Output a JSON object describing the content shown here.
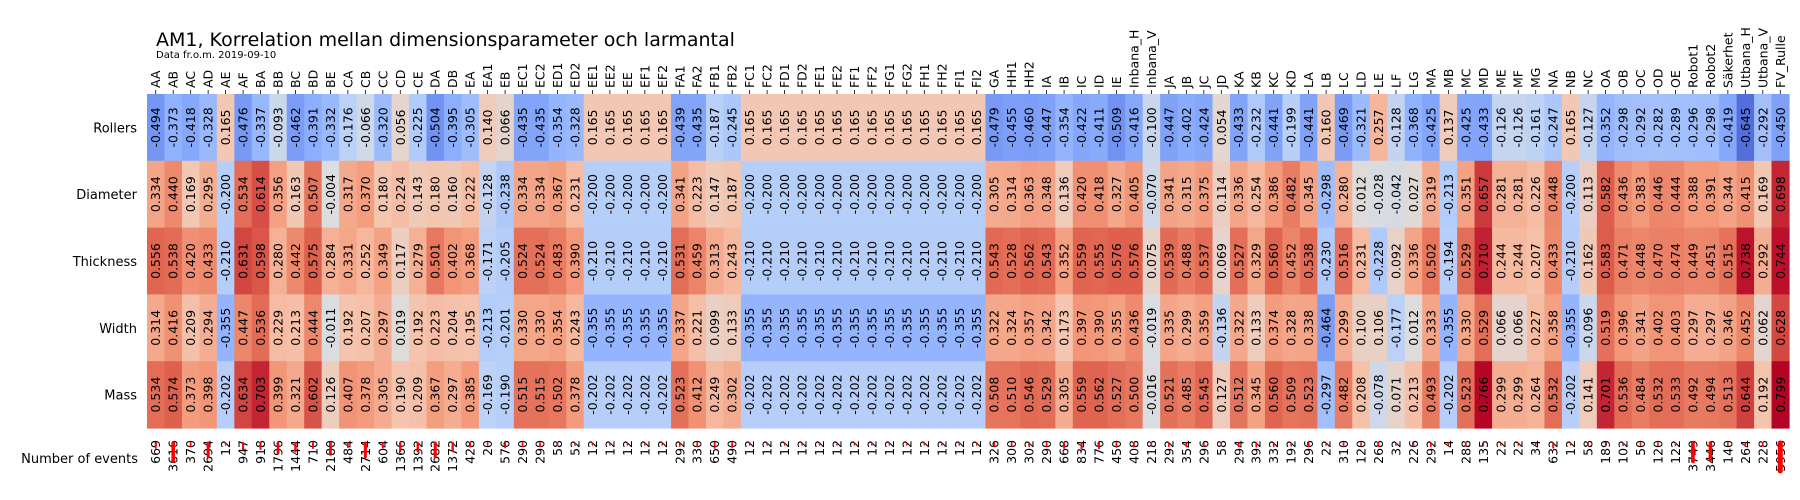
{
  "chart_data": {
    "type": "heatmap",
    "title": "AM1, Korrelation mellan dimensionsparameter och larmantal",
    "subtitle": "Data fr.o.m. 2019-09-10",
    "columns": [
      "AA",
      "AB",
      "AC",
      "AD",
      "AE",
      "AF",
      "BA",
      "BB",
      "BC",
      "BD",
      "BE",
      "CA",
      "CB",
      "CC",
      "CD",
      "CE",
      "DA",
      "DB",
      "EA",
      "EA1",
      "EB",
      "EC1",
      "EC2",
      "ED1",
      "ED2",
      "EE1",
      "EE2",
      "EE",
      "EF1",
      "EF2",
      "FA1",
      "FA2",
      "FB1",
      "FB2",
      "FC1",
      "FC2",
      "FD1",
      "FD2",
      "FE1",
      "FE2",
      "FF1",
      "FF2",
      "FG1",
      "FG2",
      "FH1",
      "FH2",
      "FI1",
      "FI2",
      "GA",
      "HH1",
      "HH2",
      "IA",
      "IB",
      "IC",
      "ID",
      "IE",
      "Inbana_H",
      "Inbana_V",
      "JA",
      "JB",
      "JC",
      "JD",
      "KA",
      "KB",
      "KC",
      "KD",
      "LA",
      "LB",
      "LC",
      "LD",
      "LE",
      "LF",
      "LG",
      "MA",
      "MB",
      "MC",
      "MD",
      "ME",
      "MF",
      "MG",
      "NA",
      "NB",
      "NC",
      "OA",
      "OB",
      "OC",
      "OD",
      "OE",
      "Robot1",
      "Robot2",
      "Säkerhet",
      "Utbana_H",
      "Utbana_V",
      "FV_Rulle"
    ],
    "rows": [
      "Rollers",
      "Diameter",
      "Thickness",
      "Width",
      "Mass"
    ],
    "values": [
      [
        -0.494,
        -0.373,
        -0.418,
        -0.328,
        0.165,
        -0.476,
        -0.337,
        -0.093,
        -0.462,
        -0.391,
        -0.332,
        -0.176,
        -0.066,
        -0.32,
        0.056,
        -0.225,
        -0.504,
        -0.395,
        -0.305,
        0.14,
        0.066,
        -0.435,
        -0.435,
        -0.354,
        -0.328,
        0.165,
        0.165,
        0.165,
        0.165,
        0.165,
        -0.439,
        -0.435,
        -0.187,
        -0.245,
        0.165,
        0.165,
        0.165,
        0.165,
        0.165,
        0.165,
        0.165,
        0.165,
        0.165,
        0.165,
        0.165,
        0.165,
        0.165,
        0.165,
        -0.479,
        -0.455,
        -0.46,
        -0.447,
        -0.354,
        -0.422,
        -0.411,
        -0.509,
        -0.416,
        -0.1,
        -0.447,
        -0.402,
        -0.424,
        0.054,
        -0.433,
        -0.232,
        -0.441,
        -0.199,
        -0.441,
        0.16,
        -0.469,
        -0.321,
        0.257,
        -0.128,
        -0.368,
        -0.425,
        0.137,
        -0.425,
        -0.433,
        -0.126,
        -0.126,
        -0.161,
        -0.247,
        0.165,
        -0.127,
        -0.352,
        -0.298,
        -0.292,
        -0.282,
        -0.289,
        -0.296,
        -0.298,
        -0.419,
        -0.645,
        -0.292,
        -0.45
      ],
      [
        0.334,
        0.44,
        0.169,
        0.295,
        -0.2,
        0.534,
        0.614,
        0.356,
        0.163,
        0.507,
        -0.004,
        0.317,
        0.37,
        0.18,
        0.224,
        0.143,
        0.18,
        0.16,
        0.222,
        -0.128,
        -0.238,
        0.334,
        0.334,
        0.367,
        0.231,
        -0.2,
        -0.2,
        -0.2,
        -0.2,
        -0.2,
        0.341,
        0.223,
        0.147,
        0.187,
        -0.2,
        -0.2,
        -0.2,
        -0.2,
        -0.2,
        -0.2,
        -0.2,
        -0.2,
        -0.2,
        -0.2,
        -0.2,
        -0.2,
        -0.2,
        -0.2,
        0.305,
        0.314,
        0.363,
        0.348,
        0.136,
        0.42,
        0.418,
        0.327,
        0.405,
        -0.07,
        0.341,
        0.315,
        0.375,
        0.114,
        0.336,
        0.254,
        0.386,
        0.482,
        0.345,
        -0.298,
        0.28,
        0.012,
        -0.028,
        -0.042,
        0.027,
        0.319,
        -0.213,
        0.351,
        0.657,
        0.281,
        0.281,
        0.226,
        0.448,
        -0.2,
        0.113,
        0.582,
        0.436,
        0.383,
        0.446,
        0.444,
        0.388,
        0.391,
        0.344,
        0.415,
        0.169,
        0.698
      ],
      [
        0.556,
        0.538,
        0.42,
        0.433,
        -0.21,
        0.631,
        0.598,
        0.28,
        0.442,
        0.575,
        0.284,
        0.331,
        0.252,
        0.349,
        0.117,
        0.279,
        0.501,
        0.402,
        0.368,
        -0.171,
        -0.205,
        0.524,
        0.524,
        0.483,
        0.39,
        -0.21,
        -0.21,
        -0.21,
        -0.21,
        -0.21,
        0.531,
        0.459,
        0.313,
        0.243,
        -0.21,
        -0.21,
        -0.21,
        -0.21,
        -0.21,
        -0.21,
        -0.21,
        -0.21,
        -0.21,
        -0.21,
        -0.21,
        -0.21,
        -0.21,
        -0.21,
        0.543,
        0.528,
        0.562,
        0.543,
        0.352,
        0.559,
        0.555,
        0.576,
        0.576,
        0.075,
        0.539,
        0.488,
        0.537,
        0.069,
        0.527,
        0.329,
        0.56,
        0.452,
        0.538,
        -0.23,
        0.516,
        0.231,
        -0.228,
        0.092,
        0.336,
        0.502,
        -0.194,
        0.529,
        0.71,
        0.244,
        0.244,
        0.207,
        0.433,
        -0.21,
        0.162,
        0.583,
        0.471,
        0.448,
        0.47,
        0.474,
        0.449,
        0.451,
        0.515,
        0.738,
        0.292,
        0.744
      ],
      [
        0.314,
        0.416,
        0.209,
        0.294,
        -0.355,
        0.447,
        0.536,
        0.229,
        0.213,
        0.444,
        -0.011,
        0.192,
        0.207,
        0.297,
        0.019,
        0.192,
        0.223,
        0.204,
        0.195,
        -0.213,
        -0.201,
        0.33,
        0.33,
        0.354,
        0.243,
        -0.355,
        -0.355,
        -0.355,
        -0.355,
        -0.355,
        0.337,
        0.221,
        0.099,
        0.133,
        -0.355,
        -0.355,
        -0.355,
        -0.355,
        -0.355,
        -0.355,
        -0.355,
        -0.355,
        -0.355,
        -0.355,
        -0.355,
        -0.355,
        -0.355,
        -0.355,
        0.322,
        0.324,
        0.357,
        0.342,
        0.173,
        0.397,
        0.39,
        0.355,
        0.436,
        -0.019,
        0.335,
        0.299,
        0.359,
        -0.136,
        0.322,
        0.133,
        0.374,
        0.328,
        0.338,
        -0.464,
        0.299,
        0.1,
        0.106,
        -0.177,
        0.012,
        0.333,
        -0.355,
        0.33,
        0.529,
        0.066,
        0.066,
        0.227,
        0.358,
        -0.355,
        -0.096,
        0.519,
        0.396,
        0.341,
        0.402,
        0.403,
        0.297,
        0.297,
        0.346,
        0.452,
        0.062,
        0.628
      ],
      [
        0.534,
        0.574,
        0.373,
        0.398,
        -0.202,
        0.634,
        0.703,
        0.399,
        0.321,
        0.602,
        0.126,
        0.407,
        0.378,
        0.305,
        0.19,
        0.209,
        0.367,
        0.297,
        0.385,
        -0.169,
        -0.19,
        0.515,
        0.515,
        0.502,
        0.378,
        -0.202,
        -0.202,
        -0.202,
        -0.202,
        -0.202,
        0.523,
        0.412,
        0.249,
        0.302,
        -0.202,
        -0.202,
        -0.202,
        -0.202,
        -0.202,
        -0.202,
        -0.202,
        -0.202,
        -0.202,
        -0.202,
        -0.202,
        -0.202,
        -0.202,
        -0.202,
        0.508,
        0.51,
        0.546,
        0.529,
        0.305,
        0.559,
        0.562,
        0.527,
        0.5,
        -0.016,
        0.521,
        0.485,
        0.545,
        0.127,
        0.512,
        0.345,
        0.56,
        0.509,
        0.523,
        -0.297,
        0.482,
        0.208,
        -0.078,
        0.071,
        0.213,
        0.493,
        -0.202,
        0.523,
        0.766,
        0.299,
        0.299,
        0.264,
        0.532,
        -0.202,
        0.141,
        0.701,
        0.536,
        0.484,
        0.532,
        0.533,
        0.492,
        0.494,
        0.513,
        0.644,
        0.192,
        0.799
      ]
    ],
    "events_label": "Number of events",
    "events": [
      669,
      3616,
      370,
      2694,
      12,
      947,
      918,
      1796,
      1444,
      710,
      2180,
      484,
      2714,
      604,
      1366,
      1392,
      2682,
      1372,
      428,
      20,
      576,
      290,
      290,
      58,
      52,
      12,
      12,
      12,
      12,
      12,
      292,
      330,
      650,
      490,
      12,
      12,
      12,
      12,
      12,
      12,
      12,
      12,
      12,
      12,
      12,
      12,
      12,
      12,
      326,
      300,
      302,
      290,
      668,
      834,
      776,
      450,
      408,
      218,
      292,
      354,
      296,
      58,
      294,
      392,
      332,
      192,
      296,
      22,
      310,
      120,
      268,
      32,
      226,
      292,
      14,
      288,
      135,
      22,
      22,
      34,
      632,
      12,
      58,
      189,
      102,
      50,
      120,
      122,
      3749,
      3446,
      140,
      264,
      228,
      5956
    ],
    "colormap": [
      "#ffffff",
      "#ab0020"
    ],
    "marker_color": "#ff0000"
  }
}
